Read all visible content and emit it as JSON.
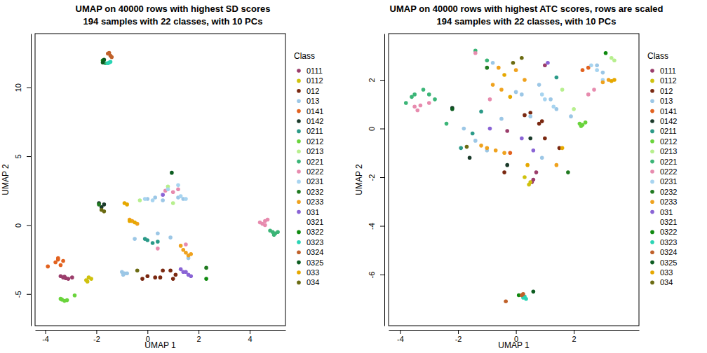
{
  "chart_data": [
    {
      "type": "scatter",
      "title": "UMAP on 40000 rows with highest SD scores\n194 samples with 22 classes, with 10 PCs",
      "x_label": "UMAP 1",
      "y_label": "UMAP 2",
      "legend_title": "Class",
      "legend": "right",
      "marker": "circle",
      "xlim": [
        -4.4,
        5.4
      ],
      "ylim": [
        -7.3,
        13.9
      ],
      "xticks": [
        -4,
        -2,
        0,
        2,
        4
      ],
      "yticks": [
        -5,
        0,
        5,
        10
      ],
      "series": [
        {
          "name": "0111",
          "color": "#9b3d6b",
          "x": [
            -3.4,
            -3.3,
            -3.2,
            -3.1,
            -2.95,
            -3.25
          ],
          "values": [
            -3.7,
            -3.8,
            -3.85,
            -3.9,
            -3.8,
            -3.75
          ]
        },
        {
          "name": "0112",
          "color": "#cfc10d",
          "x": [
            -2.3,
            -2.4,
            -2.2,
            -2.35
          ],
          "values": [
            -3.8,
            -4.0,
            -3.9,
            -4.1
          ]
        },
        {
          "name": "012",
          "color": "#7a2810",
          "x": [
            -0.2,
            0.0,
            0.3,
            0.6,
            0.9,
            1.0,
            1.1,
            0.5
          ],
          "values": [
            -3.9,
            -3.7,
            -3.8,
            -3.3,
            -3.3,
            -3.9,
            -3.6,
            -3.8
          ]
        },
        {
          "name": "013",
          "color": "#9cc7e6",
          "x": [
            -1.0,
            -0.9,
            -0.8,
            -0.95,
            0.0,
            0.3,
            0.6,
            1.2,
            1.4,
            0.9,
            0.4,
            -0.5,
            1.6
          ],
          "values": [
            -3.4,
            -3.5,
            -3.5,
            -3.6,
            1.9,
            2.0,
            1.8,
            2.0,
            1.9,
            -0.9,
            -0.6,
            -1.0,
            -2.4
          ]
        },
        {
          "name": "0141",
          "color": "#e2621f",
          "x": [
            -3.5,
            -3.6,
            -3.4,
            -3.3,
            -3.9,
            -3.5
          ],
          "values": [
            -2.5,
            -2.7,
            -2.9,
            -2.6,
            -3.0,
            -2.4
          ]
        },
        {
          "name": "0142",
          "color": "#1a3a2a",
          "x": [
            -1.9,
            -1.8,
            -1.7
          ],
          "values": [
            1.6,
            1.3,
            1.5
          ]
        },
        {
          "name": "0211",
          "color": "#2b9a88",
          "x": [
            0.0,
            0.2,
            0.4,
            -0.1
          ],
          "values": [
            -1.1,
            -1.3,
            -1.2,
            -1.0
          ]
        },
        {
          "name": "0212",
          "color": "#6ad43c",
          "x": [
            -3.35,
            -3.25,
            -3.15,
            -3.4,
            -2.85
          ],
          "values": [
            -5.4,
            -5.5,
            -5.45,
            -5.35,
            -5.1
          ]
        },
        {
          "name": "0213",
          "color": "#b7ef8e",
          "x": [
            -0.3,
            1.0,
            0.8
          ],
          "values": [
            1.8,
            1.6,
            2.8
          ]
        },
        {
          "name": "0221",
          "color": "#3bb577",
          "x": [
            4.8,
            4.9,
            5.0,
            5.1,
            4.95,
            -1.65
          ],
          "values": [
            -0.4,
            -0.5,
            -0.6,
            -0.5,
            -0.7,
            11.75
          ]
        },
        {
          "name": "0222",
          "color": "#e78bae",
          "x": [
            4.4,
            4.5,
            4.6,
            4.7,
            4.6,
            0.7,
            1.0,
            1.2,
            0.4,
            1.5
          ],
          "values": [
            0.2,
            0.1,
            0.3,
            0.4,
            0.0,
            2.5,
            2.4,
            2.6,
            -1.7,
            -1.4
          ]
        },
        {
          "name": "0231",
          "color": "#a7d4f0",
          "x": [
            0.8,
            1.2,
            1.3,
            1.5,
            -0.1,
            0.2
          ],
          "values": [
            2.6,
            2.9,
            2.1,
            1.9,
            1.9,
            1.8
          ]
        },
        {
          "name": "0232",
          "color": "#207a20",
          "x": [
            -1.9,
            2.3
          ],
          "values": [
            1.5,
            -3.1
          ]
        },
        {
          "name": "0233",
          "color": "#efa21e",
          "x": [
            1.4,
            1.5,
            1.6,
            1.7,
            1.3,
            -0.7,
            -0.6,
            -0.4
          ],
          "values": [
            -1.8,
            -2.0,
            -2.2,
            -2.1,
            -1.5,
            0.4,
            0.3,
            0.1
          ]
        },
        {
          "name": "031",
          "color": "#8a64d5",
          "x": [
            1.3,
            1.5,
            1.6,
            1.7,
            1.4,
            0.6
          ],
          "values": [
            -3.2,
            -3.4,
            -3.6,
            -3.7,
            -3.4,
            2.2
          ]
        },
        {
          "name": "0321",
          "color": "#ffffff",
          "x": [],
          "values": []
        },
        {
          "name": "0322",
          "color": "#0f8a0f",
          "x": [
            -1.75,
            2.3
          ],
          "values": [
            11.95,
            -3.9
          ]
        },
        {
          "name": "0323",
          "color": "#2ad4b4",
          "x": [
            -1.5,
            -1.45,
            -1.55
          ],
          "values": [
            11.8,
            11.85,
            11.75
          ]
        },
        {
          "name": "0324",
          "color": "#c0612a",
          "x": [
            -1.5,
            -1.45,
            -1.55,
            -1.4
          ],
          "values": [
            12.5,
            12.3,
            12.45,
            12.2
          ]
        },
        {
          "name": "0325",
          "color": "#0c5c20",
          "x": [
            -1.75,
            -1.7,
            0.95
          ],
          "values": [
            11.8,
            12.0,
            3.8
          ]
        },
        {
          "name": "033",
          "color": "#e6a800",
          "x": [
            -0.9,
            -0.8,
            -0.7,
            -0.5
          ],
          "values": [
            1.6,
            1.5,
            0.3,
            0.2
          ]
        },
        {
          "name": "034",
          "color": "#6b6b12",
          "x": [
            -1.8,
            -1.7,
            -0.4
          ],
          "values": [
            1.1,
            1.0,
            -3.3
          ]
        }
      ]
    },
    {
      "type": "scatter",
      "title": "UMAP on 40000 rows with highest ATC scores, rows are scaled\n194 samples with 22 classes, with 10 PCs",
      "x_label": "UMAP 1",
      "y_label": "UMAP 2",
      "legend_title": "Class",
      "legend": "right",
      "marker": "circle",
      "xlim": [
        -4.4,
        4.25
      ],
      "ylim": [
        -8.1,
        3.9
      ],
      "xticks": [
        -4,
        -2,
        0,
        2
      ],
      "yticks": [
        -6,
        -4,
        -2,
        0,
        2
      ],
      "series": [
        {
          "name": "0111",
          "color": "#9b3d6b",
          "x": [
            0.6,
            0.55,
            0.7,
            -0.3,
            1.0
          ],
          "values": [
            -2.1,
            -2.2,
            -1.8,
            -0.1,
            2.6
          ]
        },
        {
          "name": "0112",
          "color": "#cfc10d",
          "x": [
            0.5,
            0.45,
            0.3
          ],
          "values": [
            -2.2,
            -2.3,
            -2.0
          ]
        },
        {
          "name": "012",
          "color": "#7a2810",
          "x": [
            0.3,
            0.5,
            0.8,
            0.9,
            1.0,
            -0.4,
            1.5
          ],
          "values": [
            0.55,
            0.65,
            0.2,
            0.3,
            -0.4,
            -1.8,
            -0.8
          ]
        },
        {
          "name": "013",
          "color": "#9cc7e6",
          "x": [
            -1.4,
            -1.0,
            -0.5,
            0.0,
            0.2,
            0.5,
            0.8,
            1.2,
            1.4,
            -1.8,
            -0.8,
            2.8,
            3.0,
            0.9,
            1.9
          ],
          "values": [
            -0.5,
            -0.9,
            0.4,
            1.5,
            1.4,
            0.5,
            1.8,
            1.2,
            0.8,
            0.0,
            2.7,
            2.6,
            2.3,
            -1.2,
            0.5
          ]
        },
        {
          "name": "0141",
          "color": "#e2621f",
          "x": [
            2.3,
            2.5,
            -0.2
          ],
          "values": [
            2.4,
            2.5,
            -1.0
          ]
        },
        {
          "name": "0142",
          "color": "#1a3a2a",
          "x": [
            -2.2,
            -1.6,
            -0.3,
            0.5
          ],
          "values": [
            0.85,
            -1.2,
            -1.5,
            -0.4
          ]
        },
        {
          "name": "0211",
          "color": "#2b9a88",
          "x": [
            -1.9,
            -1.2,
            1.4,
            -1.5
          ],
          "values": [
            -0.8,
            0.7,
            2.1,
            -0.2
          ]
        },
        {
          "name": "0212",
          "color": "#6ad43c",
          "x": [
            2.2,
            2.3,
            2.4,
            2.25
          ],
          "values": [
            0.2,
            0.15,
            0.25,
            0.1
          ]
        },
        {
          "name": "0213",
          "color": "#b7ef8e",
          "x": [
            3.3,
            3.4,
            2.0,
            1.6
          ],
          "values": [
            2.9,
            2.8,
            0.8,
            1.6
          ]
        },
        {
          "name": "0221",
          "color": "#3bb577",
          "x": [
            -3.8,
            -3.6,
            -3.5,
            -3.2,
            -3.0,
            -2.8,
            -1.4,
            -1.0,
            -2.4
          ],
          "values": [
            1.05,
            1.3,
            1.4,
            1.6,
            1.4,
            1.2,
            3.2,
            2.8,
            0.2
          ]
        },
        {
          "name": "0222",
          "color": "#e78bae",
          "x": [
            -3.5,
            -3.4,
            -3.3,
            -3.0,
            -1.4,
            2.5,
            2.7,
            -0.9
          ],
          "values": [
            0.9,
            0.75,
            0.95,
            1.05,
            3.1,
            1.4,
            1.6,
            1.2
          ]
        },
        {
          "name": "0231",
          "color": "#a7d4f0",
          "x": [
            2.6,
            2.8,
            0.9,
            1.0,
            1.3,
            3.0
          ],
          "values": [
            2.6,
            2.4,
            1.4,
            1.2,
            0.9,
            2.0
          ]
        },
        {
          "name": "0232",
          "color": "#207a20",
          "x": [
            -1.0,
            1.8
          ],
          "values": [
            2.5,
            -1.8
          ]
        },
        {
          "name": "0233",
          "color": "#efa21e",
          "x": [
            -1.2,
            -1.0,
            -0.7,
            -0.4,
            -0.6,
            0.0,
            0.3,
            3.0,
            3.2,
            -0.5,
            -0.8,
            1.4
          ],
          "values": [
            -0.7,
            -0.8,
            -0.9,
            -1.0,
            2.5,
            2.4,
            2.0,
            1.9,
            2.0,
            1.6,
            1.8,
            -1.5
          ]
        },
        {
          "name": "031",
          "color": "#8a64d5",
          "x": [
            0.2,
            0.6,
            1.1,
            -0.9
          ],
          "values": [
            -0.4,
            -0.9,
            2.7,
            0.0
          ]
        },
        {
          "name": "0321",
          "color": "#ffffff",
          "x": [],
          "values": []
        },
        {
          "name": "0322",
          "color": "#0f8a0f",
          "x": [
            0.1,
            3.1
          ],
          "values": [
            -6.85,
            3.1
          ]
        },
        {
          "name": "0323",
          "color": "#2ad4b4",
          "x": [
            0.3,
            0.35,
            0.25
          ],
          "values": [
            -6.9,
            -7.0,
            -6.95
          ]
        },
        {
          "name": "0324",
          "color": "#c0612a",
          "x": [
            -0.35,
            0.2,
            0.25
          ],
          "values": [
            -7.1,
            -6.85,
            -6.8
          ]
        },
        {
          "name": "0325",
          "color": "#0c5c20",
          "x": [
            0.6,
            -2.2
          ],
          "values": [
            -6.7,
            0.8
          ]
        },
        {
          "name": "033",
          "color": "#e6a800",
          "x": [
            -0.4,
            -0.2,
            0.4,
            1.6,
            3.3,
            3.4
          ],
          "values": [
            2.2,
            1.3,
            -1.5,
            -0.8,
            1.95,
            2.0
          ]
        },
        {
          "name": "034",
          "color": "#6b6b12",
          "x": [
            -0.1,
            0.2,
            -1.7
          ],
          "values": [
            2.7,
            2.9,
            -0.75
          ]
        }
      ]
    }
  ]
}
